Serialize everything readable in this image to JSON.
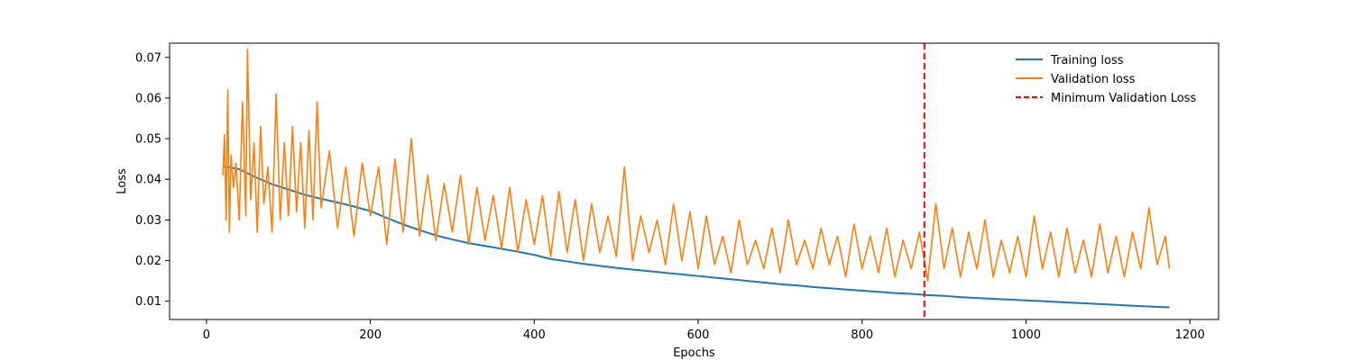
{
  "chart_data": {
    "type": "line",
    "title": "",
    "xlabel": "Epochs",
    "ylabel": "Loss",
    "xlim": [
      -45,
      1235
    ],
    "ylim": [
      0.0055,
      0.0735
    ],
    "xticks": [
      0,
      200,
      400,
      600,
      800,
      1000,
      1200
    ],
    "xtick_labels": [
      "0",
      "200",
      "400",
      "600",
      "800",
      "1000",
      "1200"
    ],
    "yticks": [
      0.01,
      0.02,
      0.03,
      0.04,
      0.05,
      0.06,
      0.07
    ],
    "ytick_labels": [
      "0.01",
      "0.02",
      "0.03",
      "0.04",
      "0.05",
      "0.06",
      "0.07"
    ],
    "grid": false,
    "legend_position": "top-right",
    "series": [
      {
        "name": "Training loss",
        "color": "#1f77b4",
        "x": [
          20,
          40,
          60,
          80,
          100,
          120,
          140,
          160,
          180,
          200,
          220,
          240,
          260,
          280,
          300,
          320,
          340,
          360,
          380,
          400,
          420,
          440,
          460,
          480,
          500,
          520,
          540,
          560,
          580,
          600,
          620,
          640,
          660,
          680,
          700,
          720,
          740,
          760,
          780,
          800,
          820,
          840,
          860,
          880,
          900,
          920,
          940,
          960,
          980,
          1000,
          1020,
          1040,
          1060,
          1080,
          1100,
          1120,
          1140,
          1160,
          1175
        ],
        "y": [
          0.0432,
          0.0425,
          0.0405,
          0.0388,
          0.0375,
          0.0362,
          0.0352,
          0.0343,
          0.0333,
          0.0322,
          0.0305,
          0.0289,
          0.0275,
          0.0262,
          0.0252,
          0.0243,
          0.0236,
          0.0229,
          0.0222,
          0.0214,
          0.0204,
          0.0198,
          0.0192,
          0.0187,
          0.0182,
          0.0178,
          0.0174,
          0.017,
          0.0166,
          0.0162,
          0.0158,
          0.0154,
          0.015,
          0.0146,
          0.0142,
          0.0139,
          0.0135,
          0.0132,
          0.0129,
          0.0126,
          0.0123,
          0.012,
          0.0118,
          0.0115,
          0.0113,
          0.011,
          0.0108,
          0.0106,
          0.0104,
          0.0102,
          0.01,
          0.0098,
          0.0096,
          0.0094,
          0.0092,
          0.009,
          0.0088,
          0.0086,
          0.0085
        ]
      },
      {
        "name": "Validation loss",
        "color": "#ff7f0e",
        "x": [
          20,
          22,
          24,
          26,
          28,
          30,
          33,
          36,
          40,
          44,
          48,
          50,
          54,
          58,
          62,
          66,
          70,
          75,
          80,
          85,
          90,
          95,
          100,
          105,
          110,
          115,
          120,
          125,
          130,
          135,
          140,
          150,
          160,
          170,
          180,
          190,
          200,
          210,
          220,
          230,
          240,
          250,
          260,
          270,
          280,
          290,
          300,
          310,
          320,
          330,
          340,
          350,
          360,
          370,
          380,
          390,
          400,
          410,
          420,
          430,
          440,
          450,
          460,
          470,
          480,
          490,
          500,
          510,
          520,
          530,
          540,
          550,
          560,
          570,
          580,
          590,
          600,
          610,
          620,
          630,
          640,
          650,
          660,
          670,
          680,
          690,
          700,
          710,
          720,
          730,
          740,
          750,
          760,
          770,
          780,
          790,
          800,
          810,
          820,
          830,
          840,
          850,
          860,
          870,
          880,
          890,
          900,
          910,
          920,
          930,
          940,
          950,
          960,
          970,
          980,
          990,
          1000,
          1010,
          1020,
          1030,
          1040,
          1050,
          1060,
          1070,
          1080,
          1090,
          1100,
          1110,
          1120,
          1130,
          1140,
          1150,
          1160,
          1170,
          1175
        ],
        "y": [
          0.041,
          0.051,
          0.03,
          0.062,
          0.027,
          0.046,
          0.038,
          0.044,
          0.03,
          0.059,
          0.031,
          0.072,
          0.035,
          0.049,
          0.027,
          0.053,
          0.034,
          0.043,
          0.027,
          0.061,
          0.03,
          0.049,
          0.031,
          0.053,
          0.032,
          0.049,
          0.028,
          0.052,
          0.03,
          0.059,
          0.033,
          0.047,
          0.028,
          0.043,
          0.026,
          0.044,
          0.031,
          0.043,
          0.024,
          0.045,
          0.027,
          0.05,
          0.026,
          0.041,
          0.025,
          0.039,
          0.027,
          0.041,
          0.024,
          0.038,
          0.025,
          0.036,
          0.023,
          0.038,
          0.022,
          0.035,
          0.024,
          0.036,
          0.021,
          0.037,
          0.022,
          0.035,
          0.02,
          0.034,
          0.022,
          0.031,
          0.021,
          0.043,
          0.02,
          0.031,
          0.022,
          0.03,
          0.019,
          0.034,
          0.02,
          0.032,
          0.018,
          0.031,
          0.019,
          0.026,
          0.017,
          0.03,
          0.019,
          0.025,
          0.018,
          0.028,
          0.017,
          0.03,
          0.019,
          0.025,
          0.018,
          0.028,
          0.019,
          0.026,
          0.016,
          0.029,
          0.018,
          0.026,
          0.017,
          0.028,
          0.016,
          0.025,
          0.018,
          0.027,
          0.015,
          0.034,
          0.018,
          0.028,
          0.016,
          0.027,
          0.018,
          0.03,
          0.016,
          0.025,
          0.017,
          0.026,
          0.016,
          0.031,
          0.018,
          0.027,
          0.016,
          0.028,
          0.017,
          0.025,
          0.016,
          0.029,
          0.017,
          0.026,
          0.016,
          0.027,
          0.018,
          0.033,
          0.019,
          0.026,
          0.018
        ]
      }
    ],
    "reference_lines": [
      {
        "name": "Minimum Validation Loss",
        "orientation": "vertical",
        "x": 876,
        "color": "#ff0000",
        "style": "dashed"
      }
    ]
  }
}
